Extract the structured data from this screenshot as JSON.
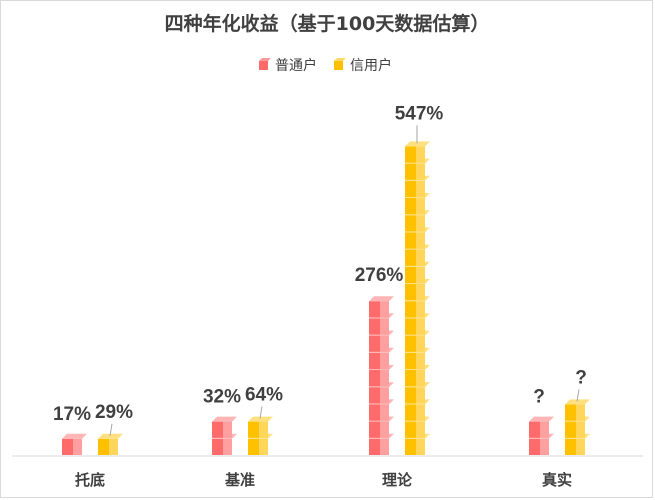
{
  "chart_data": {
    "type": "bar",
    "title": "四种年化收益（基于100天数据估算）",
    "categories": [
      "托底",
      "基准",
      "理论",
      "真实"
    ],
    "series": [
      {
        "name": "普通户",
        "values": [
          17,
          32,
          276,
          null
        ],
        "labels": [
          "17%",
          "32%",
          "276%",
          "?"
        ],
        "color": "#ff6b6b",
        "display_units": [
          1,
          2,
          9,
          2
        ]
      },
      {
        "name": "信用户",
        "values": [
          29,
          64,
          547,
          null
        ],
        "labels": [
          "29%",
          "64%",
          "547%",
          "?"
        ],
        "color": "#ffc000",
        "display_units": [
          1,
          2,
          18,
          3
        ]
      }
    ],
    "legend_position": "top",
    "grid": false
  }
}
